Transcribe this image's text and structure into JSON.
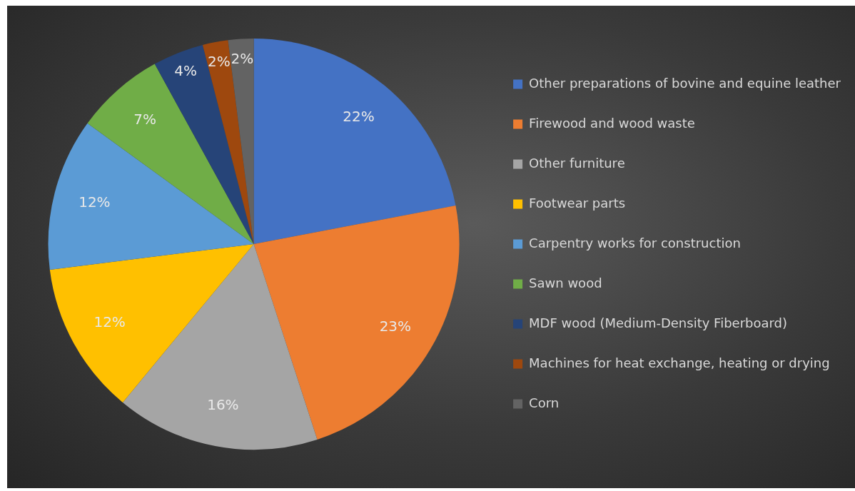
{
  "chart_data": {
    "type": "pie",
    "categories": [
      "Other preparations of bovine and equine leather",
      "Firewood and wood waste",
      "Other furniture",
      "Footwear parts",
      "Carpentry works for construction",
      "Sawn wood",
      "MDF wood (Medium-Density Fiberboard)",
      "Machines for heat exchange, heating or drying",
      "Corn"
    ],
    "values": [
      22,
      23,
      16,
      12,
      12,
      7,
      4,
      2,
      2
    ],
    "value_labels": [
      "22%",
      "23%",
      "16%",
      "12%",
      "12%",
      "7%",
      "4%",
      "2%",
      "2%"
    ],
    "colors": [
      "#4472c4",
      "#ed7d31",
      "#a5a5a5",
      "#ffc000",
      "#5b9bd5",
      "#70ad47",
      "#264478",
      "#9e480e",
      "#636363"
    ],
    "legend": "right"
  }
}
